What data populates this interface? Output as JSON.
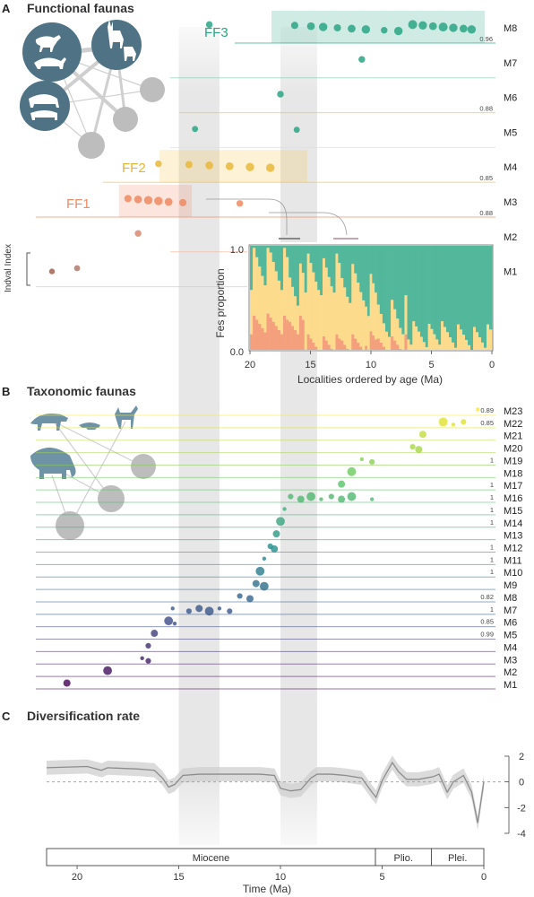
{
  "panels": {
    "a": {
      "letter": "A",
      "title": "Functional faunas"
    },
    "b": {
      "letter": "B",
      "title": "Taxonomic faunas"
    },
    "c": {
      "letter": "C",
      "title": "Diversification rate"
    }
  },
  "colors": {
    "FF1": "#ef8a62",
    "FF2": "#f5c542",
    "FF3": "#2aa585",
    "FF1_bar": "#f4a07d",
    "FF2_bar": "#fcdc8c",
    "FF3_bar": "#52b79b",
    "icon_fill": "#4f7384",
    "node_grey": "#bdbdbd",
    "shade": "#e6e6e6",
    "taxonomic_gradient": [
      "#440154",
      "#3b528b",
      "#21908d",
      "#5dc863",
      "#fde725"
    ]
  },
  "functional": {
    "faunas": [
      {
        "label": "FF1",
        "color": "#ef8a62",
        "range_ma": [
          17.5,
          14.8
        ]
      },
      {
        "label": "FF2",
        "color": "#f5c542",
        "range_ma": [
          15.5,
          10.0
        ]
      },
      {
        "label": "FF3",
        "color": "#2aa585",
        "range_ma": [
          10.0,
          0.0
        ]
      }
    ],
    "modules": [
      {
        "label": "M8",
        "indval": "0.96"
      },
      {
        "label": "M7",
        "indval": ""
      },
      {
        "label": "M6",
        "indval": "0.88"
      },
      {
        "label": "M5",
        "indval": ""
      },
      {
        "label": "M4",
        "indval": "0.85"
      },
      {
        "label": "M3",
        "indval": "0.88"
      },
      {
        "label": "M2",
        "indval": ""
      },
      {
        "label": "M1",
        "indval": ""
      }
    ],
    "indval_legend": "Indval Index"
  },
  "taxonomic": {
    "modules": [
      {
        "label": "M23",
        "indval": "0.89"
      },
      {
        "label": "M22",
        "indval": "0.85"
      },
      {
        "label": "M21",
        "indval": ""
      },
      {
        "label": "M20",
        "indval": ""
      },
      {
        "label": "M19",
        "indval": "1"
      },
      {
        "label": "M18",
        "indval": ""
      },
      {
        "label": "M17",
        "indval": "1"
      },
      {
        "label": "M16",
        "indval": "1"
      },
      {
        "label": "M15",
        "indval": "1"
      },
      {
        "label": "M14",
        "indval": "1"
      },
      {
        "label": "M13",
        "indval": ""
      },
      {
        "label": "M12",
        "indval": "1"
      },
      {
        "label": "M11",
        "indval": "1"
      },
      {
        "label": "M10",
        "indval": "1"
      },
      {
        "label": "M9",
        "indval": ""
      },
      {
        "label": "M8",
        "indval": "0.82"
      },
      {
        "label": "M7",
        "indval": "1"
      },
      {
        "label": "M6",
        "indval": "0.85"
      },
      {
        "label": "M5",
        "indval": "0.99"
      },
      {
        "label": "M4",
        "indval": ""
      },
      {
        "label": "M3",
        "indval": ""
      },
      {
        "label": "M2",
        "indval": ""
      },
      {
        "label": "M1",
        "indval": ""
      }
    ]
  },
  "chart_data": [
    {
      "type": "scatter",
      "title": "Functional faunas",
      "x_unit": "Ma",
      "xlim": [
        21.5,
        0
      ],
      "series": [
        {
          "name": "M8",
          "points": [
            [
              13.5,
              0.6
            ],
            [
              9.3,
              0.7
            ],
            [
              8.5,
              0.8
            ],
            [
              7.9,
              0.9
            ],
            [
              7.2,
              0.7
            ],
            [
              6.5,
              0.8
            ],
            [
              5.8,
              0.9
            ],
            [
              4.9,
              0.6
            ],
            [
              4.2,
              0.9
            ],
            [
              3.5,
              1.0
            ],
            [
              3.0,
              0.9
            ],
            [
              2.5,
              0.8
            ],
            [
              2.0,
              1.0
            ],
            [
              1.5,
              0.9
            ],
            [
              1.0,
              0.8
            ],
            [
              0.6,
              0.9
            ]
          ]
        },
        {
          "name": "M7",
          "points": [
            [
              6.0,
              0.6
            ]
          ]
        },
        {
          "name": "M6",
          "points": [
            [
              10.0,
              0.6
            ]
          ]
        },
        {
          "name": "M5",
          "points": [
            [
              14.2,
              0.5
            ],
            [
              9.2,
              0.5
            ]
          ]
        },
        {
          "name": "M4",
          "points": [
            [
              16.0,
              0.6
            ],
            [
              14.5,
              0.7
            ],
            [
              13.5,
              0.8
            ],
            [
              12.5,
              0.8
            ],
            [
              11.5,
              0.9
            ],
            [
              10.5,
              0.9
            ]
          ]
        },
        {
          "name": "M3",
          "points": [
            [
              17.5,
              0.7
            ],
            [
              17.0,
              0.8
            ],
            [
              16.5,
              0.9
            ],
            [
              16.0,
              0.9
            ],
            [
              15.5,
              0.8
            ],
            [
              14.8,
              0.7
            ],
            [
              12.0,
              0.6
            ]
          ]
        },
        {
          "name": "M2",
          "points": [
            [
              17.0,
              0.6
            ]
          ]
        },
        {
          "name": "M1",
          "points": [
            [
              20.0,
              0.5
            ]
          ]
        }
      ]
    },
    {
      "type": "bar",
      "title": "",
      "xlabel": "Localities ordered by age (Ma)",
      "ylabel": "Fes proportion",
      "xlim": [
        20,
        0
      ],
      "ylim": [
        0.0,
        1.0
      ],
      "xticks": [
        20,
        15,
        10,
        5,
        0
      ],
      "yticks": [
        "0.0",
        "1.0"
      ],
      "stack_order": [
        "FF1",
        "FF2",
        "FF3"
      ],
      "segments": [
        {
          "x_range": [
            20.0,
            16.8
          ],
          "FF1": 0.25,
          "FF2": 0.55,
          "FF3": 0.2
        },
        {
          "x_range": [
            16.8,
            15.5
          ],
          "FF1": 0.25,
          "FF2": 0.4,
          "FF3": 0.35
        },
        {
          "x_range": [
            15.5,
            12.5
          ],
          "FF1": 0.05,
          "FF2": 0.65,
          "FF3": 0.3
        },
        {
          "x_range": [
            12.5,
            10.5
          ],
          "FF1": 0.05,
          "FF2": 0.55,
          "FF3": 0.4
        },
        {
          "x_range": [
            10.5,
            9.5
          ],
          "FF1": 0.1,
          "FF2": 0.45,
          "FF3": 0.45
        },
        {
          "x_range": [
            9.5,
            7.0
          ],
          "FF1": 0.05,
          "FF2": 0.25,
          "FF3": 0.7
        },
        {
          "x_range": [
            7.0,
            4.0
          ],
          "FF1": 0.0,
          "FF2": 0.15,
          "FF3": 0.85
        },
        {
          "x_range": [
            4.0,
            0.0
          ],
          "FF1": 0.0,
          "FF2": 0.12,
          "FF3": 0.88
        }
      ]
    },
    {
      "type": "scatter",
      "title": "Taxonomic faunas",
      "x_unit": "Ma",
      "xlim": [
        21.5,
        0
      ],
      "series_positions_ma": {
        "M1": [
          20.5
        ],
        "M2": [
          18.5
        ],
        "M3": [
          16.8,
          16.5
        ],
        "M4": [
          16.5
        ],
        "M5": [
          16.2
        ],
        "M6": [
          15.5,
          15.2
        ],
        "M7": [
          15.3,
          14.5,
          14.0,
          13.5,
          13.0,
          12.5
        ],
        "M8": [
          12.0,
          11.5
        ],
        "M9": [
          11.2,
          10.8
        ],
        "M10": [
          11.0
        ],
        "M11": [
          10.8
        ],
        "M12": [
          10.5,
          10.3
        ],
        "M13": [
          10.2
        ],
        "M14": [
          10.0
        ],
        "M15": [
          9.8
        ],
        "M16": [
          9.5,
          9.0,
          8.5,
          8.0,
          7.5,
          7.0,
          6.5,
          5.5
        ],
        "M17": [
          7.0
        ],
        "M18": [
          6.5
        ],
        "M19": [
          6.0,
          5.5
        ],
        "M20": [
          3.5,
          3.2
        ],
        "M21": [
          3.0
        ],
        "M22": [
          2.0,
          1.5,
          1.0
        ],
        "M23": [
          0.3
        ]
      }
    },
    {
      "type": "line",
      "title": "Diversification rate",
      "xlabel": "Time (Ma)",
      "xlim": [
        21.5,
        0
      ],
      "ylim": [
        -4,
        2
      ],
      "xticks": [
        20,
        15,
        10,
        5,
        0
      ],
      "yticks": [
        2,
        0,
        -2,
        -4
      ],
      "x": [
        21.5,
        19.5,
        18.8,
        18.5,
        17.0,
        16.2,
        15.8,
        15.5,
        15.2,
        14.8,
        14.0,
        13.0,
        12.0,
        11.0,
        10.3,
        10.0,
        9.5,
        9.0,
        8.5,
        8.2,
        7.5,
        6.8,
        6.0,
        5.5,
        5.3,
        5.0,
        4.5,
        4.2,
        3.8,
        3.2,
        2.5,
        2.2,
        1.8,
        1.5,
        1.0,
        0.6,
        0.3,
        0.0
      ],
      "y": [
        1.1,
        1.2,
        0.9,
        1.1,
        1.0,
        0.9,
        0.3,
        -0.4,
        -0.2,
        0.5,
        0.6,
        0.6,
        0.6,
        0.6,
        0.5,
        -0.5,
        -0.7,
        -0.6,
        0.3,
        0.6,
        0.6,
        0.5,
        0.3,
        -0.8,
        -1.2,
        0.1,
        1.5,
        0.8,
        0.2,
        0.2,
        0.4,
        0.6,
        -0.8,
        0.0,
        0.5,
        -0.8,
        -3.2,
        0.0
      ],
      "band_half_width": 0.55
    }
  ],
  "inset": {
    "ylabel": "Fes proportion",
    "ylabel_top": "1.0",
    "ylabel_bottom": "0.0",
    "xlabel": "Localities ordered by age (Ma)",
    "xticks": [
      "20",
      "15",
      "10",
      "5",
      "0"
    ]
  },
  "time_axis": {
    "label": "Time (Ma)",
    "ticks": [
      "20",
      "15",
      "10",
      "5",
      "0"
    ],
    "epochs": [
      "Miocene",
      "Plio.",
      "Plei."
    ],
    "epoch_bounds_ma": [
      21.5,
      5.33,
      2.58,
      0.0
    ]
  },
  "diversification_yticks": [
    "2",
    "0",
    "-2",
    "-4"
  ],
  "shaded_bands_ma": [
    [
      15.0,
      13.0
    ],
    [
      10.0,
      8.2
    ]
  ]
}
